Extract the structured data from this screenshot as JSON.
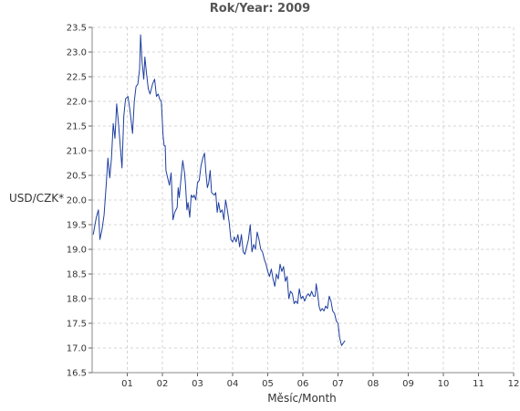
{
  "chart_data": {
    "type": "line",
    "title": "Rok/Year: 2009",
    "xlabel": "Měsíc/Month",
    "ylabel": "USD/CZK*",
    "xlim": [
      0,
      12
    ],
    "ylim": [
      16.5,
      23.5
    ],
    "grid": true,
    "line_color": "#1f3f9f",
    "x_ticks": [
      {
        "v": 1,
        "label": "01"
      },
      {
        "v": 2,
        "label": "02"
      },
      {
        "v": 3,
        "label": "03"
      },
      {
        "v": 4,
        "label": "04"
      },
      {
        "v": 5,
        "label": "05"
      },
      {
        "v": 6,
        "label": "06"
      },
      {
        "v": 7,
        "label": "07"
      },
      {
        "v": 8,
        "label": "08"
      },
      {
        "v": 9,
        "label": "09"
      },
      {
        "v": 10,
        "label": "10"
      },
      {
        "v": 11,
        "label": "11"
      },
      {
        "v": 12,
        "label": "12"
      }
    ],
    "y_ticks": [
      "16.5",
      "17.0",
      "17.5",
      "18.0",
      "18.5",
      "19.0",
      "19.5",
      "20.0",
      "20.5",
      "21.0",
      "21.5",
      "22.0",
      "22.5",
      "23.0",
      "23.5"
    ],
    "series": [
      {
        "points": [
          [
            0.03,
            19.3
          ],
          [
            0.12,
            19.65
          ],
          [
            0.18,
            19.8
          ],
          [
            0.22,
            19.2
          ],
          [
            0.28,
            19.4
          ],
          [
            0.34,
            19.7
          ],
          [
            0.4,
            20.3
          ],
          [
            0.45,
            20.85
          ],
          [
            0.5,
            20.45
          ],
          [
            0.55,
            20.85
          ],
          [
            0.6,
            21.55
          ],
          [
            0.65,
            21.25
          ],
          [
            0.7,
            21.95
          ],
          [
            0.75,
            21.55
          ],
          [
            0.8,
            21.1
          ],
          [
            0.85,
            20.65
          ],
          [
            0.9,
            21.7
          ],
          [
            0.95,
            22.05
          ],
          [
            1.02,
            22.1
          ],
          [
            1.08,
            21.8
          ],
          [
            1.15,
            21.35
          ],
          [
            1.2,
            22.0
          ],
          [
            1.25,
            22.3
          ],
          [
            1.3,
            22.35
          ],
          [
            1.35,
            22.65
          ],
          [
            1.38,
            23.35
          ],
          [
            1.42,
            22.8
          ],
          [
            1.47,
            22.45
          ],
          [
            1.5,
            22.9
          ],
          [
            1.55,
            22.55
          ],
          [
            1.6,
            22.25
          ],
          [
            1.65,
            22.15
          ],
          [
            1.72,
            22.35
          ],
          [
            1.78,
            22.45
          ],
          [
            1.83,
            22.1
          ],
          [
            1.88,
            22.15
          ],
          [
            1.92,
            22.05
          ],
          [
            1.97,
            22.0
          ],
          [
            2.02,
            21.3
          ],
          [
            2.05,
            21.1
          ],
          [
            2.08,
            21.1
          ],
          [
            2.1,
            20.6
          ],
          [
            2.15,
            20.45
          ],
          [
            2.2,
            20.3
          ],
          [
            2.25,
            20.55
          ],
          [
            2.3,
            19.6
          ],
          [
            2.35,
            19.75
          ],
          [
            2.42,
            19.85
          ],
          [
            2.45,
            20.25
          ],
          [
            2.48,
            20.05
          ],
          [
            2.52,
            20.35
          ],
          [
            2.58,
            20.8
          ],
          [
            2.63,
            20.55
          ],
          [
            2.66,
            20.3
          ],
          [
            2.7,
            19.8
          ],
          [
            2.73,
            19.95
          ],
          [
            2.78,
            19.65
          ],
          [
            2.82,
            20.1
          ],
          [
            2.87,
            20.05
          ],
          [
            2.9,
            20.1
          ],
          [
            2.95,
            20.0
          ],
          [
            3.0,
            20.35
          ],
          [
            3.05,
            20.4
          ],
          [
            3.1,
            20.7
          ],
          [
            3.15,
            20.85
          ],
          [
            3.2,
            20.95
          ],
          [
            3.24,
            20.55
          ],
          [
            3.28,
            20.25
          ],
          [
            3.32,
            20.35
          ],
          [
            3.36,
            20.6
          ],
          [
            3.4,
            20.15
          ],
          [
            3.48,
            20.1
          ],
          [
            3.52,
            20.15
          ],
          [
            3.56,
            19.75
          ],
          [
            3.6,
            19.95
          ],
          [
            3.65,
            19.75
          ],
          [
            3.7,
            19.8
          ],
          [
            3.75,
            19.6
          ],
          [
            3.8,
            20.0
          ],
          [
            3.85,
            19.8
          ],
          [
            3.9,
            19.55
          ],
          [
            3.95,
            19.2
          ],
          [
            4.0,
            19.15
          ],
          [
            4.05,
            19.25
          ],
          [
            4.1,
            19.15
          ],
          [
            4.15,
            19.3
          ],
          [
            4.2,
            19.05
          ],
          [
            4.25,
            19.3
          ],
          [
            4.3,
            18.95
          ],
          [
            4.35,
            18.9
          ],
          [
            4.4,
            19.05
          ],
          [
            4.45,
            19.2
          ],
          [
            4.5,
            19.5
          ],
          [
            4.55,
            18.95
          ],
          [
            4.6,
            19.1
          ],
          [
            4.65,
            19.0
          ],
          [
            4.7,
            19.35
          ],
          [
            4.75,
            19.2
          ],
          [
            4.8,
            19.0
          ],
          [
            4.85,
            18.95
          ],
          [
            4.9,
            18.8
          ],
          [
            4.95,
            18.7
          ],
          [
            5.0,
            18.55
          ],
          [
            5.05,
            18.45
          ],
          [
            5.1,
            18.6
          ],
          [
            5.15,
            18.4
          ],
          [
            5.2,
            18.25
          ],
          [
            5.25,
            18.5
          ],
          [
            5.3,
            18.4
          ],
          [
            5.35,
            18.7
          ],
          [
            5.4,
            18.55
          ],
          [
            5.45,
            18.65
          ],
          [
            5.5,
            18.35
          ],
          [
            5.55,
            18.45
          ],
          [
            5.6,
            18.0
          ],
          [
            5.65,
            18.15
          ],
          [
            5.7,
            18.1
          ],
          [
            5.75,
            17.9
          ],
          [
            5.8,
            17.95
          ],
          [
            5.85,
            17.9
          ],
          [
            5.9,
            18.2
          ],
          [
            5.95,
            18.0
          ],
          [
            6.0,
            18.05
          ],
          [
            6.05,
            17.95
          ],
          [
            6.1,
            18.05
          ],
          [
            6.15,
            18.1
          ],
          [
            6.2,
            18.05
          ],
          [
            6.25,
            18.15
          ],
          [
            6.3,
            18.05
          ],
          [
            6.35,
            18.05
          ],
          [
            6.38,
            18.3
          ],
          [
            6.42,
            18.1
          ],
          [
            6.46,
            17.85
          ],
          [
            6.5,
            17.75
          ],
          [
            6.55,
            17.8
          ],
          [
            6.6,
            17.75
          ],
          [
            6.65,
            17.85
          ],
          [
            6.7,
            17.8
          ],
          [
            6.75,
            18.05
          ],
          [
            6.8,
            17.95
          ],
          [
            6.85,
            17.75
          ],
          [
            6.9,
            17.7
          ],
          [
            6.95,
            17.55
          ],
          [
            7.0,
            17.5
          ],
          [
            7.05,
            17.2
          ],
          [
            7.1,
            17.05
          ],
          [
            7.15,
            17.1
          ],
          [
            7.2,
            17.15
          ]
        ]
      }
    ]
  }
}
